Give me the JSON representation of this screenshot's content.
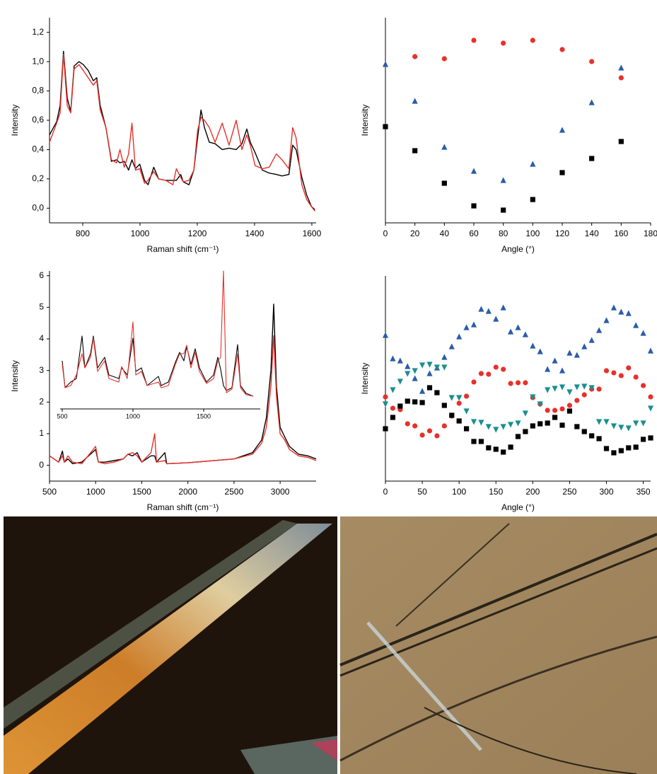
{
  "chart_data": [
    {
      "type": "line",
      "xlabel": "Raman shift (cm⁻¹)",
      "ylabel": "Intensity",
      "xlim": [
        684,
        1615
      ],
      "xticks": [
        800,
        1000,
        1200,
        1400,
        1600
      ],
      "ylim": [
        -0.1,
        1.3
      ],
      "yticks": [
        {
          "value": 0,
          "label": "0,0"
        },
        {
          "value": 0.2,
          "label": "0,2"
        },
        {
          "value": 0.4,
          "label": "0,4"
        },
        {
          "value": 0.6,
          "label": "0,6"
        },
        {
          "value": 0.8,
          "label": "0,8"
        },
        {
          "value": 1.0,
          "label": "1,0"
        },
        {
          "value": 1.2,
          "label": "1,2"
        }
      ],
      "x": [
        684,
        709,
        721,
        733,
        746,
        758,
        770,
        787,
        802,
        819,
        837,
        849,
        861,
        881,
        900,
        918,
        930,
        945,
        960,
        972,
        984,
        999,
        1016,
        1028,
        1048,
        1065,
        1090,
        1115,
        1127,
        1142,
        1151,
        1171,
        1188,
        1201,
        1213,
        1225,
        1242,
        1262,
        1287,
        1311,
        1336,
        1356,
        1373,
        1385,
        1402,
        1427,
        1451,
        1476,
        1496,
        1520,
        1533,
        1545,
        1565,
        1582,
        1599,
        1611
      ],
      "series": [
        {
          "color": "#000000",
          "values": [
            0.5,
            0.59,
            0.7,
            1.07,
            0.75,
            0.66,
            0.97,
            1.0,
            0.98,
            0.94,
            0.87,
            0.89,
            0.7,
            0.55,
            0.32,
            0.33,
            0.31,
            0.32,
            0.26,
            0.33,
            0.27,
            0.3,
            0.19,
            0.16,
            0.28,
            0.2,
            0.19,
            0.19,
            0.19,
            0.23,
            0.18,
            0.16,
            0.26,
            0.48,
            0.67,
            0.55,
            0.45,
            0.44,
            0.4,
            0.41,
            0.4,
            0.44,
            0.54,
            0.45,
            0.38,
            0.26,
            0.24,
            0.23,
            0.22,
            0.23,
            0.43,
            0.4,
            0.21,
            0.09,
            0.01,
            -0.01
          ]
        },
        {
          "color": "#e8302a",
          "values": [
            0.45,
            0.58,
            0.65,
            1.05,
            0.7,
            0.65,
            0.95,
            0.98,
            0.94,
            0.89,
            0.84,
            0.87,
            0.67,
            0.55,
            0.33,
            0.31,
            0.4,
            0.28,
            0.37,
            0.58,
            0.26,
            0.27,
            0.17,
            0.19,
            0.25,
            0.2,
            0.19,
            0.16,
            0.27,
            0.21,
            0.18,
            0.19,
            0.26,
            0.53,
            0.62,
            0.6,
            0.55,
            0.45,
            0.58,
            0.43,
            0.6,
            0.4,
            0.5,
            0.43,
            0.29,
            0.27,
            0.28,
            0.37,
            0.33,
            0.27,
            0.55,
            0.48,
            0.16,
            0.06,
            0.01,
            -0.02
          ]
        }
      ]
    },
    {
      "type": "scatter",
      "xlabel": "Angle (°)",
      "ylabel": "Intensity",
      "xlim": [
        0,
        180
      ],
      "xticks": [
        0,
        20,
        40,
        60,
        80,
        100,
        120,
        140,
        160,
        180
      ],
      "ylim": [
        0,
        290
      ],
      "series": [
        {
          "color": "#e8302a",
          "marker": "circle",
          "x": [
            20,
            40,
            60,
            80,
            100,
            120,
            140,
            160
          ],
          "values": [
            235,
            232,
            258,
            254,
            258,
            245,
            228,
            205
          ]
        },
        {
          "color": "#2a5caa",
          "marker": "triangle-up",
          "x": [
            0,
            20,
            40,
            60,
            80,
            100,
            120,
            140,
            160
          ],
          "values": [
            224,
            172,
            107,
            73,
            60,
            83,
            131,
            170,
            219
          ]
        },
        {
          "color": "#000000",
          "marker": "square",
          "x": [
            0,
            20,
            40,
            60,
            80,
            100,
            120,
            140,
            160
          ],
          "values": [
            136,
            102,
            56,
            24,
            18,
            33,
            71,
            91,
            115
          ]
        }
      ]
    },
    {
      "type": "line",
      "xlabel": "Raman shift (cm⁻¹)",
      "ylabel": "Intensity",
      "xlim": [
        500,
        3390
      ],
      "xticks": [
        500,
        1000,
        1500,
        2000,
        2500,
        3000
      ],
      "ylim": [
        -0.5,
        6.15
      ],
      "yticks": [
        0,
        1,
        2,
        3,
        4,
        5,
        6
      ],
      "x": [
        500,
        600,
        640,
        660,
        700,
        750,
        850,
        1000,
        1030,
        1100,
        1200,
        1300,
        1350,
        1400,
        1450,
        1500,
        1600,
        1640,
        1660,
        1750,
        1770,
        2000,
        2500,
        2700,
        2800,
        2850,
        2900,
        2930,
        2960,
        3000,
        3050,
        3100,
        3200,
        3300,
        3390
      ],
      "series": [
        {
          "color": "#000000",
          "values": [
            0.3,
            0.1,
            0.45,
            0.1,
            0.2,
            0.05,
            0.1,
            0.5,
            0.1,
            0.1,
            0.15,
            0.2,
            0.35,
            0.3,
            0.4,
            0.1,
            0.3,
            0.3,
            0.1,
            0.4,
            0.05,
            0.08,
            0.2,
            0.4,
            0.8,
            1.5,
            3.0,
            5.1,
            2.5,
            1.2,
            0.9,
            0.6,
            0.35,
            0.3,
            0.2
          ]
        },
        {
          "color": "#e8302a",
          "values": [
            0.3,
            0.1,
            0.3,
            0.1,
            0.3,
            0.1,
            0.05,
            0.6,
            0.1,
            0.05,
            0.1,
            0.2,
            0.35,
            0.4,
            0.3,
            0.1,
            0.4,
            1.0,
            0.1,
            0.15,
            0.05,
            0.08,
            0.2,
            0.35,
            0.7,
            1.2,
            2.5,
            4.1,
            2.2,
            1.0,
            0.8,
            0.5,
            0.3,
            0.25,
            0.15
          ]
        }
      ]
    },
    {
      "type": "line",
      "xlim": [
        485,
        1900
      ],
      "xticks": [
        500,
        1000,
        1500
      ],
      "ylim": [
        0,
        233
      ],
      "x": [
        500,
        520,
        560,
        600,
        640,
        660,
        700,
        720,
        750,
        800,
        830,
        900,
        920,
        960,
        1000,
        1020,
        1060,
        1100,
        1180,
        1200,
        1250,
        1300,
        1330,
        1360,
        1380,
        1410,
        1440,
        1470,
        1520,
        1570,
        1600,
        1620,
        1640,
        1660,
        1700,
        1740,
        1760,
        1800,
        1850
      ],
      "series": [
        {
          "color": "#000000",
          "values": [
            68,
            30,
            38,
            43,
            103,
            58,
            78,
            103,
            58,
            73,
            48,
            43,
            58,
            48,
            100,
            53,
            58,
            33,
            46,
            33,
            38,
            66,
            80,
            68,
            88,
            63,
            85,
            58,
            38,
            48,
            73,
            56,
            33,
            26,
            30,
            91,
            33,
            22,
            18
          ]
        },
        {
          "color": "#e8302a",
          "values": [
            63,
            30,
            33,
            48,
            78,
            58,
            73,
            100,
            53,
            68,
            43,
            38,
            60,
            43,
            123,
            48,
            53,
            33,
            38,
            30,
            33,
            63,
            78,
            78,
            90,
            58,
            80,
            53,
            36,
            43,
            68,
            73,
            195,
            23,
            28,
            78,
            30,
            20,
            18
          ]
        }
      ]
    },
    {
      "type": "scatter",
      "xlabel": "Angle (°)",
      "ylabel": "Intensity",
      "xlim": [
        0,
        360
      ],
      "xticks": [
        0,
        50,
        100,
        150,
        200,
        250,
        300,
        350
      ],
      "ylim": [
        0,
        290
      ],
      "x": [
        0,
        10,
        20,
        30,
        40,
        50,
        60,
        70,
        80,
        90,
        100,
        110,
        120,
        130,
        140,
        150,
        160,
        170,
        180,
        190,
        200,
        210,
        220,
        230,
        240,
        250,
        260,
        270,
        280,
        290,
        300,
        310,
        320,
        330,
        340,
        350,
        360
      ],
      "series": [
        {
          "color": "#2a5caa",
          "marker": "triangle-up",
          "values": [
            206,
            173,
            170,
            162,
            145,
            127,
            152,
            160,
            175,
            190,
            204,
            217,
            221,
            243,
            240,
            229,
            245,
            211,
            217,
            207,
            191,
            183,
            158,
            170,
            156,
            181,
            178,
            190,
            199,
            213,
            227,
            245,
            239,
            237,
            220,
            209,
            184
          ]
        },
        {
          "color": "#e8302a",
          "marker": "circle",
          "values": [
            119,
            103,
            101,
            81,
            78,
            65,
            71,
            64,
            78,
            92,
            110,
            120,
            140,
            152,
            151,
            161,
            158,
            138,
            139,
            139,
            118,
            109,
            100,
            100,
            102,
            107,
            114,
            122,
            130,
            130,
            156,
            153,
            149,
            160,
            147,
            135,
            119
          ]
        },
        {
          "color": "#1a8f8f",
          "marker": "triangle-down",
          "values": [
            109,
            129,
            141,
            152,
            156,
            164,
            165,
            161,
            161,
            118,
            118,
            99,
            84,
            83,
            77,
            73,
            77,
            80,
            82,
            96,
            119,
            109,
            129,
            131,
            133,
            126,
            133,
            134,
            132,
            84,
            84,
            78,
            76,
            75,
            82,
            82,
            103
          ]
        },
        {
          "color": "#000000",
          "marker": "square",
          "values": [
            74,
            90,
            106,
            113,
            112,
            111,
            132,
            125,
            107,
            93,
            85,
            74,
            56,
            56,
            47,
            45,
            41,
            48,
            63,
            70,
            78,
            81,
            82,
            90,
            79,
            99,
            77,
            70,
            64,
            60,
            46,
            40,
            43,
            47,
            48,
            59,
            61
          ]
        }
      ]
    }
  ]
}
